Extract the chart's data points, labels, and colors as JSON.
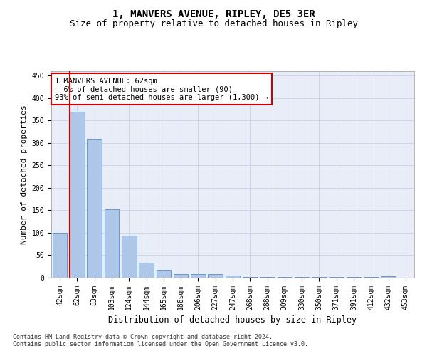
{
  "title": "1, MANVERS AVENUE, RIPLEY, DE5 3ER",
  "subtitle": "Size of property relative to detached houses in Ripley",
  "xlabel": "Distribution of detached houses by size in Ripley",
  "ylabel": "Number of detached properties",
  "footnote1": "Contains HM Land Registry data © Crown copyright and database right 2024.",
  "footnote2": "Contains public sector information licensed under the Open Government Licence v3.0.",
  "bar_labels": [
    "42sqm",
    "62sqm",
    "83sqm",
    "103sqm",
    "124sqm",
    "144sqm",
    "165sqm",
    "186sqm",
    "206sqm",
    "227sqm",
    "247sqm",
    "268sqm",
    "288sqm",
    "309sqm",
    "330sqm",
    "350sqm",
    "371sqm",
    "391sqm",
    "412sqm",
    "432sqm",
    "453sqm"
  ],
  "bar_values": [
    100,
    370,
    310,
    153,
    93,
    33,
    17,
    8,
    8,
    8,
    5,
    1,
    1,
    1,
    1,
    1,
    1,
    1,
    1,
    3,
    0
  ],
  "bar_color": "#aec6e8",
  "bar_edge_color": "#5a8fc2",
  "highlight_bar_index": 1,
  "highlight_color": "#cc0000",
  "annotation_line1": "1 MANVERS AVENUE: 62sqm",
  "annotation_line2": "← 6% of detached houses are smaller (90)",
  "annotation_line3": "93% of semi-detached houses are larger (1,300) →",
  "annotation_box_color": "#ffffff",
  "annotation_box_edge_color": "#cc0000",
  "ylim": [
    0,
    460
  ],
  "yticks": [
    0,
    50,
    100,
    150,
    200,
    250,
    300,
    350,
    400,
    450
  ],
  "background_color": "#e8edf8",
  "grid_color": "#c8d0e8",
  "title_fontsize": 10,
  "subtitle_fontsize": 9,
  "xlabel_fontsize": 8.5,
  "ylabel_fontsize": 8,
  "tick_fontsize": 7,
  "annotation_fontsize": 7.5
}
